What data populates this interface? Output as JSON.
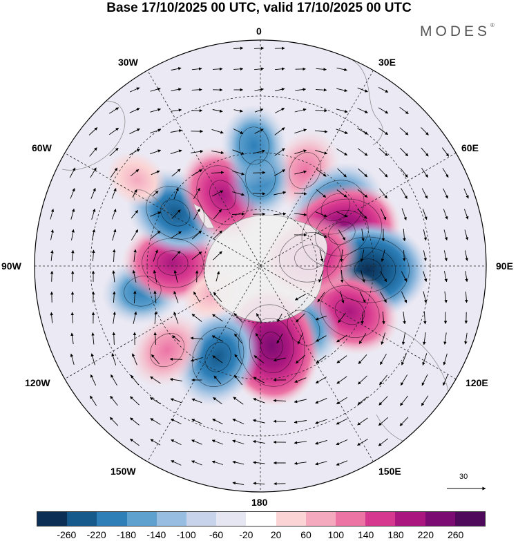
{
  "title": "Base 17/10/2025 00 UTC, valid 17/10/2025 00 UTC",
  "brand": "MODES",
  "brand_mark": "®",
  "longitude_labels": {
    "top": "0",
    "top_right": "30E",
    "right_upper": "60E",
    "right": "90E",
    "right_lower": "120E",
    "bottom_right": "150E",
    "bottom": "180",
    "bottom_left": "150W",
    "left_lower": "120W",
    "left": "90W",
    "left_upper": "60W",
    "top_left": "30W"
  },
  "reference_vector": "30",
  "colorbar": {
    "colors": [
      "#0b2f55",
      "#165a8c",
      "#2e7fb8",
      "#5ea1cf",
      "#97bde0",
      "#c6d3ea",
      "#e6e6f2",
      "#ffffff",
      "#fbd5d5",
      "#f4a9bf",
      "#ec74a5",
      "#d7388f",
      "#a9177f",
      "#7b0c72",
      "#4f0a5c"
    ],
    "ticks": [
      "-260",
      "-220",
      "-180",
      "-140",
      "-100",
      "-60",
      "-20",
      "20",
      "60",
      "100",
      "140",
      "180",
      "220",
      "260"
    ]
  },
  "anomaly_centers": [
    {
      "name": "positive-30e",
      "sign": "positive",
      "lon": 25,
      "lat": -48,
      "intensity": 2
    },
    {
      "name": "negative-45e",
      "sign": "negative",
      "lon": 52,
      "lat": -52,
      "intensity": 3
    },
    {
      "name": "positive-65e",
      "sign": "positive",
      "lon": 68,
      "lat": -55,
      "intensity": 4
    },
    {
      "name": "negative-90e",
      "sign": "negative",
      "lon": 92,
      "lat": -47,
      "intensity": 4
    },
    {
      "name": "positive-115e",
      "sign": "positive",
      "lon": 117,
      "lat": -50,
      "intensity": 3
    },
    {
      "name": "negative-145e",
      "sign": "negative",
      "lon": 145,
      "lat": -60,
      "intensity": 2
    },
    {
      "name": "positive-170e",
      "sign": "positive",
      "lon": 172,
      "lat": -58,
      "intensity": 4
    },
    {
      "name": "negative-160w",
      "sign": "negative",
      "lon": -155,
      "lat": -50,
      "intensity": 3
    },
    {
      "name": "positive-135w",
      "sign": "positive",
      "lon": -132,
      "lat": -40,
      "intensity": 2
    },
    {
      "name": "negative-100w",
      "sign": "negative",
      "lon": -102,
      "lat": -42,
      "intensity": 2
    },
    {
      "name": "positive-90w",
      "sign": "positive",
      "lon": -88,
      "lat": -55,
      "intensity": 3
    },
    {
      "name": "negative-55w",
      "sign": "negative",
      "lon": -58,
      "lat": -50,
      "intensity": 3
    },
    {
      "name": "positive-35w",
      "sign": "positive",
      "lon": -28,
      "lat": -58,
      "intensity": 3
    },
    {
      "name": "negative-0",
      "sign": "negative",
      "lon": 0,
      "lat": -55,
      "intensity": 2
    },
    {
      "name": "negative-10w",
      "sign": "negative",
      "lon": -3,
      "lat": -42,
      "intensity": 2
    },
    {
      "name": "positive-60w",
      "sign": "positive",
      "lon": -55,
      "lat": -30,
      "intensity": 1
    },
    {
      "name": "positive-90e-inner",
      "sign": "positive",
      "lon": 80,
      "lat": -70,
      "intensity": 3
    },
    {
      "name": "positive-130w-inner",
      "sign": "positive",
      "lon": -120,
      "lat": -68,
      "intensity": 1
    }
  ]
}
